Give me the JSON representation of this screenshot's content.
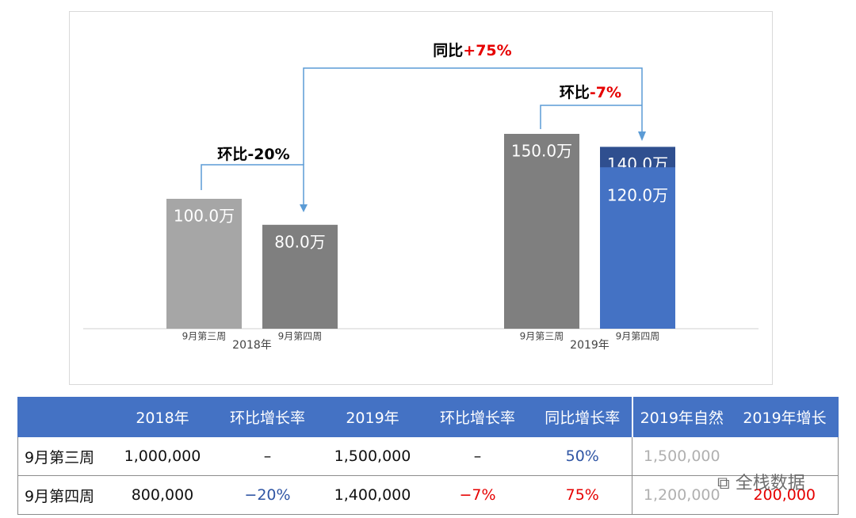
{
  "chart_data": {
    "type": "bar",
    "categories": [
      "9月第三周",
      "9月第四周",
      "9月第三周",
      "9月第四周"
    ],
    "groups": [
      "2018年",
      "2019年"
    ],
    "values": [
      100.0,
      80.0,
      150.0,
      140.0
    ],
    "value_labels": [
      "100.0万",
      "80.0万",
      "150.0万",
      "140.0万"
    ],
    "colors": [
      "#a6a6a6",
      "#7f7f7f",
      "#7f7f7f",
      "#2f4f8f"
    ],
    "overlay": {
      "values": [
        null,
        null,
        null,
        120.0
      ],
      "value_labels": [
        null,
        null,
        null,
        "120.0万"
      ],
      "color": "#4472c4"
    },
    "annotations": [
      {
        "label": "环比",
        "value": "-20%"
      },
      {
        "label": "同比",
        "value": "+75%"
      },
      {
        "label": "环比",
        "value": "-7%"
      }
    ]
  },
  "table": {
    "header": [
      "2018年",
      "环比增长率",
      "2019年",
      "环比增长率",
      "同比增长率",
      "2019年自然",
      "2019年增长"
    ],
    "rows": [
      [
        "9月第三周",
        "1,000,000",
        "–",
        "1,500,000",
        "–",
        "50%",
        "1,500,000"
      ],
      [
        "9月第四周",
        "800,000",
        "−20%",
        "1,400,000",
        "−7%",
        "75%",
        "1,200,000",
        "200,000"
      ]
    ]
  },
  "watermark": "全栈数据"
}
